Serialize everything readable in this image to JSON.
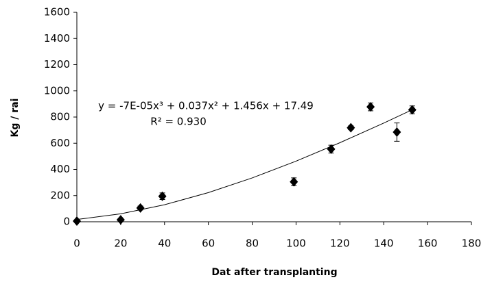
{
  "chart_data": {
    "type": "scatter",
    "x_label": "Dat after transplanting",
    "y_label": "Kg / rai",
    "equation": "y = -7E-05x³ + 0.037x² + 1.456x + 17.49",
    "r_squared": "R² = 0.930",
    "x": [
      0,
      20,
      29,
      39,
      99,
      116,
      125,
      134,
      146,
      153
    ],
    "values": [
      5,
      15,
      105,
      195,
      305,
      555,
      718,
      878,
      685,
      855
    ],
    "errors": [
      5,
      10,
      15,
      25,
      30,
      30,
      15,
      30,
      70,
      30
    ],
    "color": "#000000",
    "trendline": {
      "x": [
        0,
        20,
        40,
        60,
        80,
        100,
        120,
        140,
        153
      ],
      "values": [
        17.5,
        61,
        130,
        223,
        335,
        463,
        604,
        754,
        856
      ]
    },
    "xlim": [
      0,
      180
    ],
    "xticks": [
      0,
      20,
      40,
      60,
      80,
      100,
      120,
      140,
      160,
      180
    ],
    "ylim": [
      0,
      1600
    ],
    "yticks": [
      0,
      200,
      400,
      600,
      800,
      1000,
      1200,
      1400,
      1600
    ],
    "grid": false
  }
}
